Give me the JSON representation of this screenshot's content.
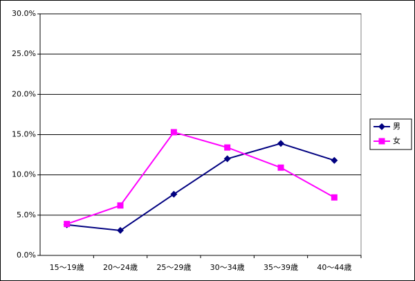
{
  "chart_data": {
    "type": "line",
    "categories": [
      "15～19歳",
      "20～24歳",
      "25～29歳",
      "30～34歳",
      "35～39歳",
      "40～44歳"
    ],
    "series": [
      {
        "name": "男",
        "color": "#000080",
        "marker": "diamond",
        "values": [
          3.8,
          3.1,
          7.6,
          12.0,
          13.9,
          11.8
        ]
      },
      {
        "name": "女",
        "color": "#ff00ff",
        "marker": "square",
        "values": [
          3.9,
          6.2,
          15.3,
          13.4,
          10.9,
          7.2
        ]
      }
    ],
    "ylim": [
      0,
      30
    ],
    "yticks": [
      {
        "value": 0,
        "label": "0.0%"
      },
      {
        "value": 5,
        "label": "5.0%"
      },
      {
        "value": 10,
        "label": "10.0%"
      },
      {
        "value": 15,
        "label": "15.0%"
      },
      {
        "value": 20,
        "label": "20.0%"
      },
      {
        "value": 25,
        "label": "25.0%"
      },
      {
        "value": 30,
        "label": "30.0%"
      }
    ],
    "grid": true,
    "legend": "right"
  }
}
